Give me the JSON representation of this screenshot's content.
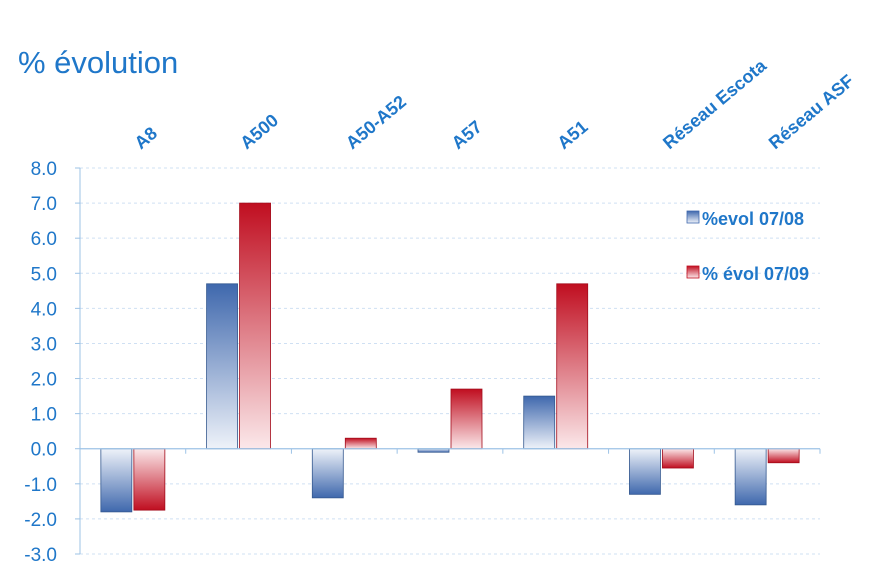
{
  "chart_data": {
    "type": "bar",
    "title": "% évolution",
    "categories": [
      "A8",
      "A500",
      "A50-A52",
      "A57",
      "A51",
      "Réseau Escota",
      "Réseau ASF"
    ],
    "series": [
      {
        "name": "%evol 07/08",
        "values": [
          -1.8,
          4.7,
          -1.4,
          -0.1,
          1.5,
          -1.3,
          -1.6
        ]
      },
      {
        "name": "% évol 07/09",
        "values": [
          -1.75,
          7.0,
          0.3,
          1.7,
          4.7,
          -0.55,
          -0.4
        ]
      }
    ],
    "ylim": [
      -3.0,
      8.0
    ],
    "yticks": [
      "8.0",
      "7.0",
      "6.0",
      "5.0",
      "4.0",
      "3.0",
      "2.0",
      "1.0",
      "0.0",
      "-1.0",
      "-2.0",
      "-3.0"
    ],
    "xlabel": "",
    "ylabel": "",
    "grid": true,
    "legend_position": "right",
    "colors": {
      "series1": "#4a73b5",
      "series2": "#c8102e",
      "text": "#1f77c9",
      "grid": "#cfe0f3",
      "axis": "#9dc3e6"
    }
  }
}
